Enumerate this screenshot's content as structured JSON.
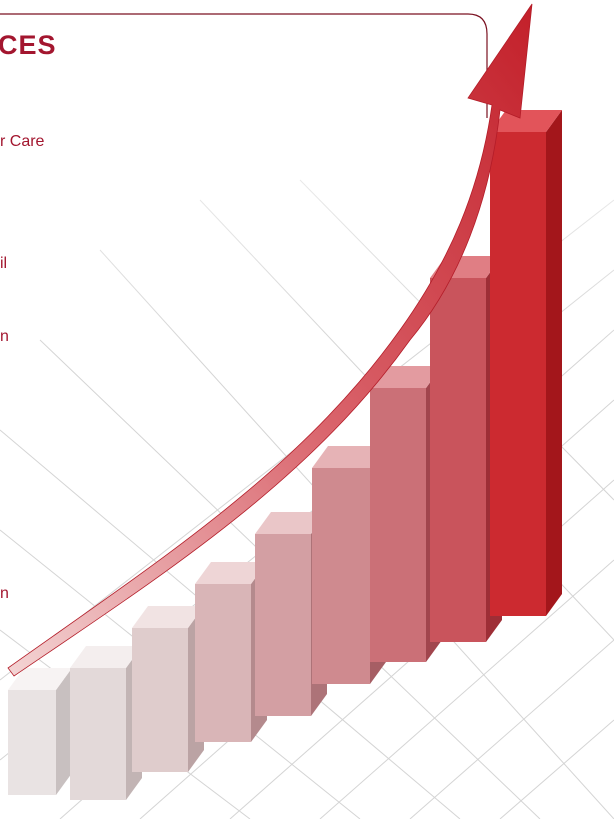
{
  "header": {
    "title": "CES"
  },
  "items": [
    "r Care",
    "il",
    "n",
    "n"
  ]
}
